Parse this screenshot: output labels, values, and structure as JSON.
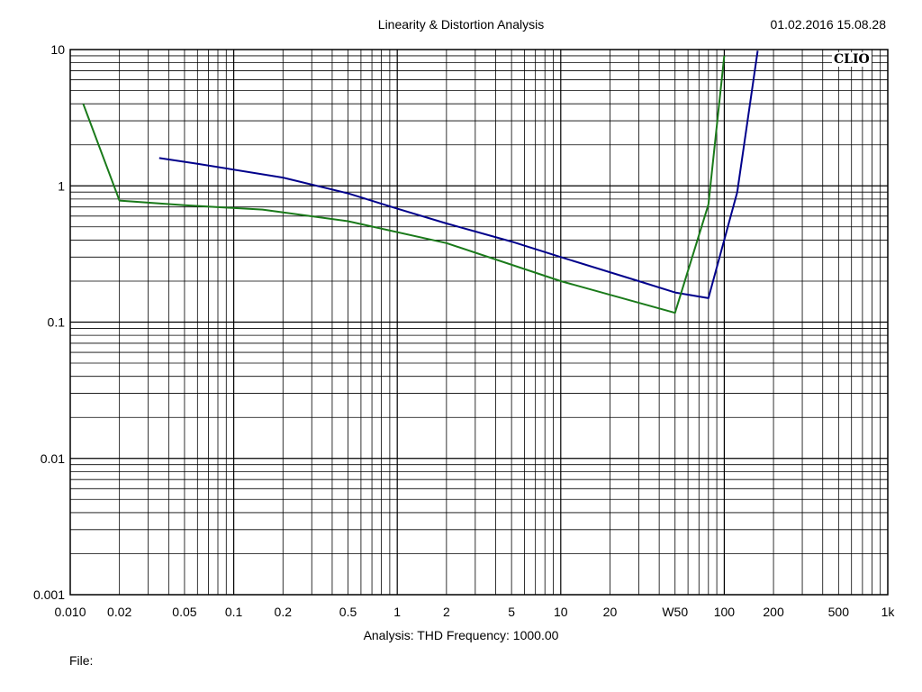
{
  "header": {
    "title": "Linearity & Distortion Analysis",
    "timestamp": "01.02.2016 15.08.28"
  },
  "brand": "CLIO",
  "footer": {
    "analysis": "Analysis: THD   Frequency: 1000.00",
    "file": "File:"
  },
  "chart_data": {
    "type": "line",
    "title": "",
    "xlabel": "",
    "ylabel": "",
    "x_scale": "log",
    "y_scale": "log",
    "xlim": [
      0.01,
      1000
    ],
    "ylim": [
      0.001,
      10
    ],
    "grid": true,
    "x_tick_labels": [
      {
        "v": 0.01,
        "t": "0.010"
      },
      {
        "v": 0.02,
        "t": "0.02"
      },
      {
        "v": 0.05,
        "t": "0.05"
      },
      {
        "v": 0.1,
        "t": "0.1"
      },
      {
        "v": 0.2,
        "t": "0.2"
      },
      {
        "v": 0.5,
        "t": "0.5"
      },
      {
        "v": 1,
        "t": "1"
      },
      {
        "v": 2,
        "t": "2"
      },
      {
        "v": 5,
        "t": "5"
      },
      {
        "v": 10,
        "t": "10"
      },
      {
        "v": 20,
        "t": "20"
      },
      {
        "v": 50,
        "t": "W50"
      },
      {
        "v": 100,
        "t": "100"
      },
      {
        "v": 200,
        "t": "200"
      },
      {
        "v": 500,
        "t": "500"
      },
      {
        "v": 1000,
        "t": "1k"
      }
    ],
    "y_tick_labels": [
      {
        "v": 0.001,
        "t": "0.001"
      },
      {
        "v": 0.01,
        "t": "0.01"
      },
      {
        "v": 0.1,
        "t": "0.1"
      },
      {
        "v": 1,
        "t": "1"
      },
      {
        "v": 10,
        "t": "10"
      }
    ],
    "series": [
      {
        "color": "#00008b",
        "x": [
          0.035,
          0.06,
          0.2,
          0.5,
          1,
          2,
          5,
          10,
          30,
          50,
          80,
          120,
          160
        ],
        "y": [
          1.6,
          1.45,
          1.15,
          0.88,
          0.68,
          0.53,
          0.39,
          0.3,
          0.2,
          0.165,
          0.15,
          0.9,
          9.8
        ]
      },
      {
        "color": "#1a7a1a",
        "x": [
          0.012,
          0.02,
          0.05,
          0.15,
          0.5,
          2,
          10,
          50,
          80,
          100
        ],
        "y": [
          4.0,
          0.78,
          0.72,
          0.67,
          0.55,
          0.38,
          0.2,
          0.117,
          0.73,
          9.0
        ]
      }
    ]
  }
}
